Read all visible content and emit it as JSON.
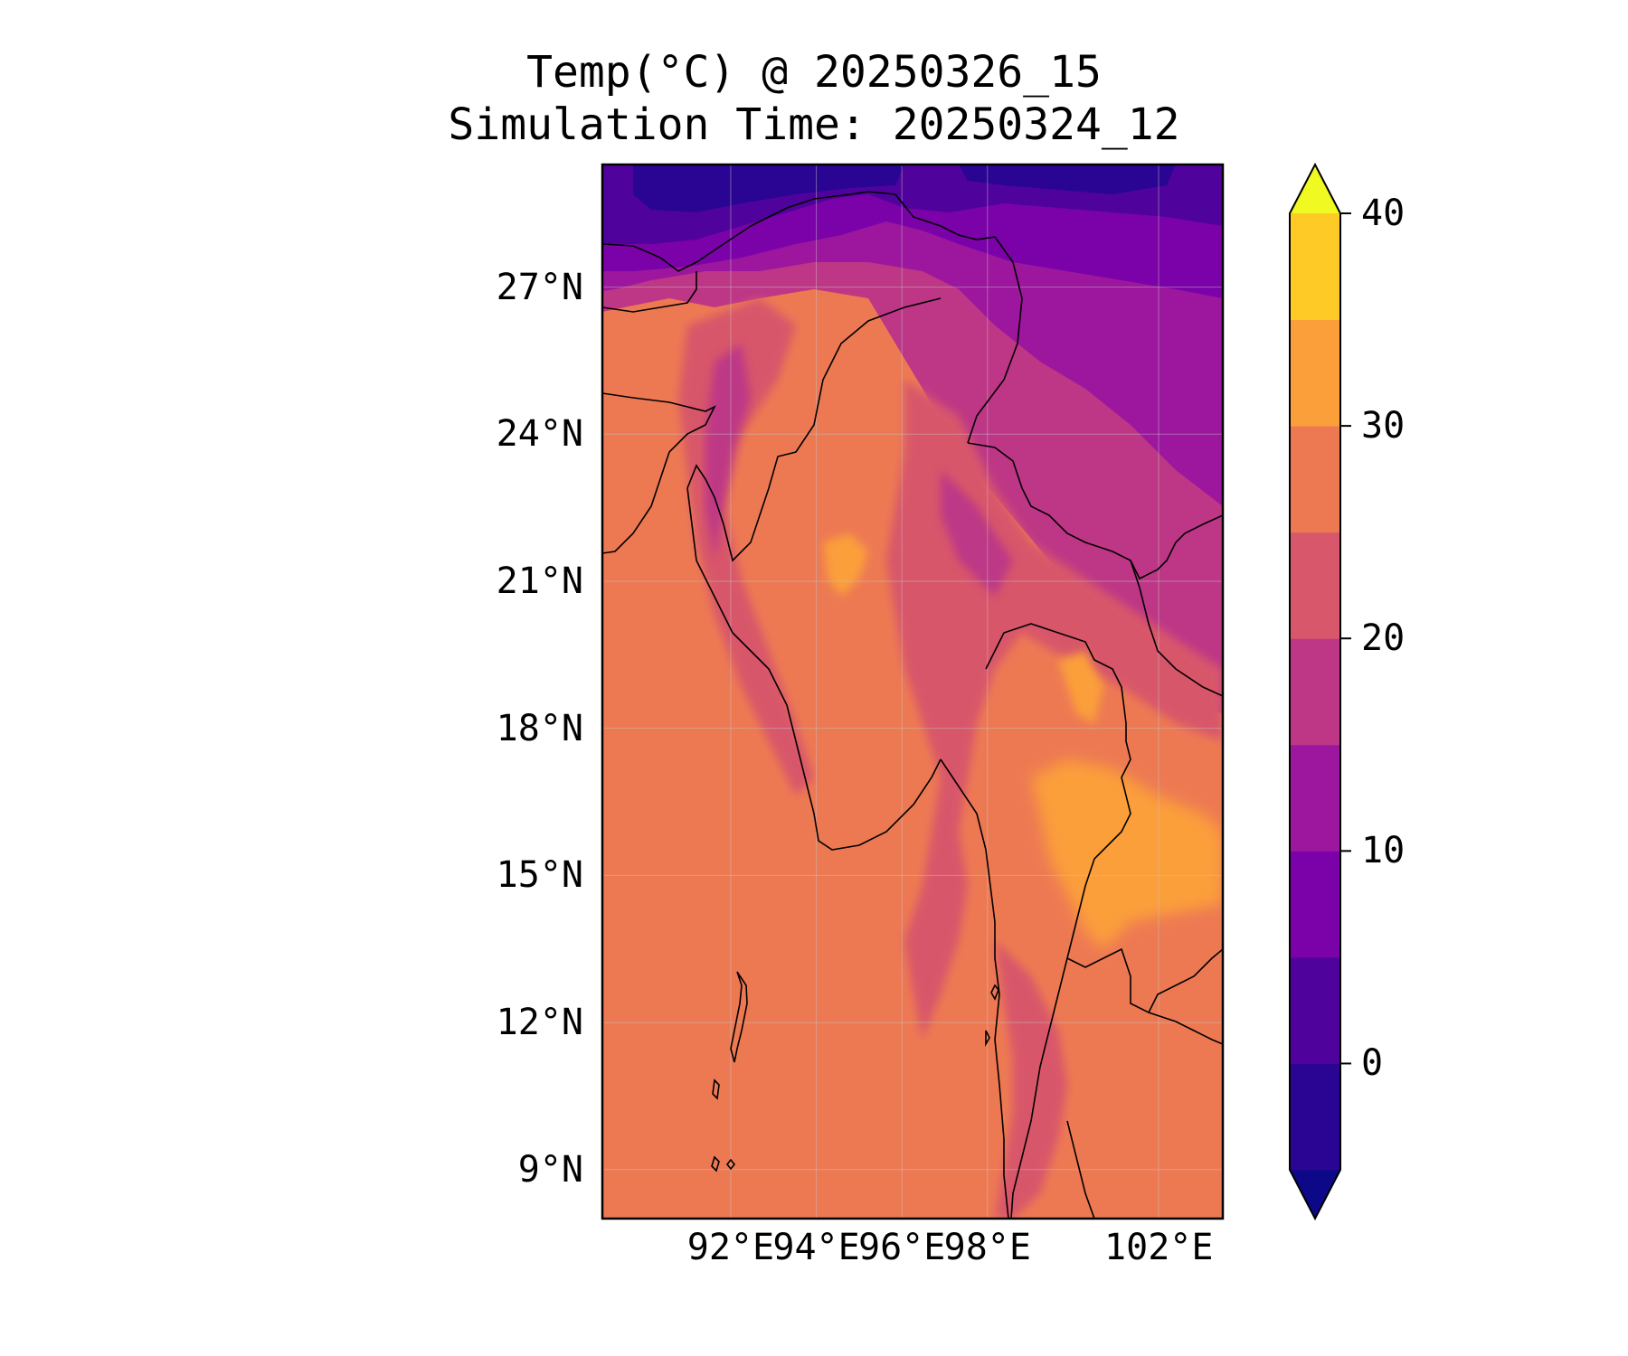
{
  "title_line1": "Temp(°C) @ 20250326_15",
  "title_line2": "Simulation Time: 20250324_12",
  "map": {
    "lon_range": [
      89.0,
      103.5
    ],
    "lat_range": [
      8.0,
      29.5
    ],
    "lat_ticks": [
      {
        "value": 27,
        "label": "27°N"
      },
      {
        "value": 24,
        "label": "24°N"
      },
      {
        "value": 21,
        "label": "21°N"
      },
      {
        "value": 18,
        "label": "18°N"
      },
      {
        "value": 15,
        "label": "15°N"
      },
      {
        "value": 12,
        "label": "12°N"
      },
      {
        "value": 9,
        "label": "9°N"
      }
    ],
    "lon_ticks": [
      {
        "value": 92,
        "label": "92°E"
      },
      {
        "value": 94,
        "label": "94°E"
      },
      {
        "value": 96,
        "label": "96°E"
      },
      {
        "value": 98,
        "label": "98°E"
      },
      {
        "value": 102,
        "label": "102°E"
      }
    ],
    "gridlines": true
  },
  "colorbar": {
    "levels": [
      -5,
      0,
      5,
      10,
      15,
      20,
      25,
      30,
      35,
      40
    ],
    "extend": "both",
    "colors": [
      "#0d0887",
      "#2a0593",
      "#50029c",
      "#7a02a8",
      "#9c179e",
      "#bd3786",
      "#d8576b",
      "#ed7953",
      "#fb9f3a",
      "#fdca26",
      "#f0f921"
    ],
    "ticks": [
      {
        "value": 0,
        "label": "0"
      },
      {
        "value": 10,
        "label": "10"
      },
      {
        "value": 20,
        "label": "20"
      },
      {
        "value": 30,
        "label": "30"
      },
      {
        "value": 40,
        "label": "40"
      }
    ]
  }
}
